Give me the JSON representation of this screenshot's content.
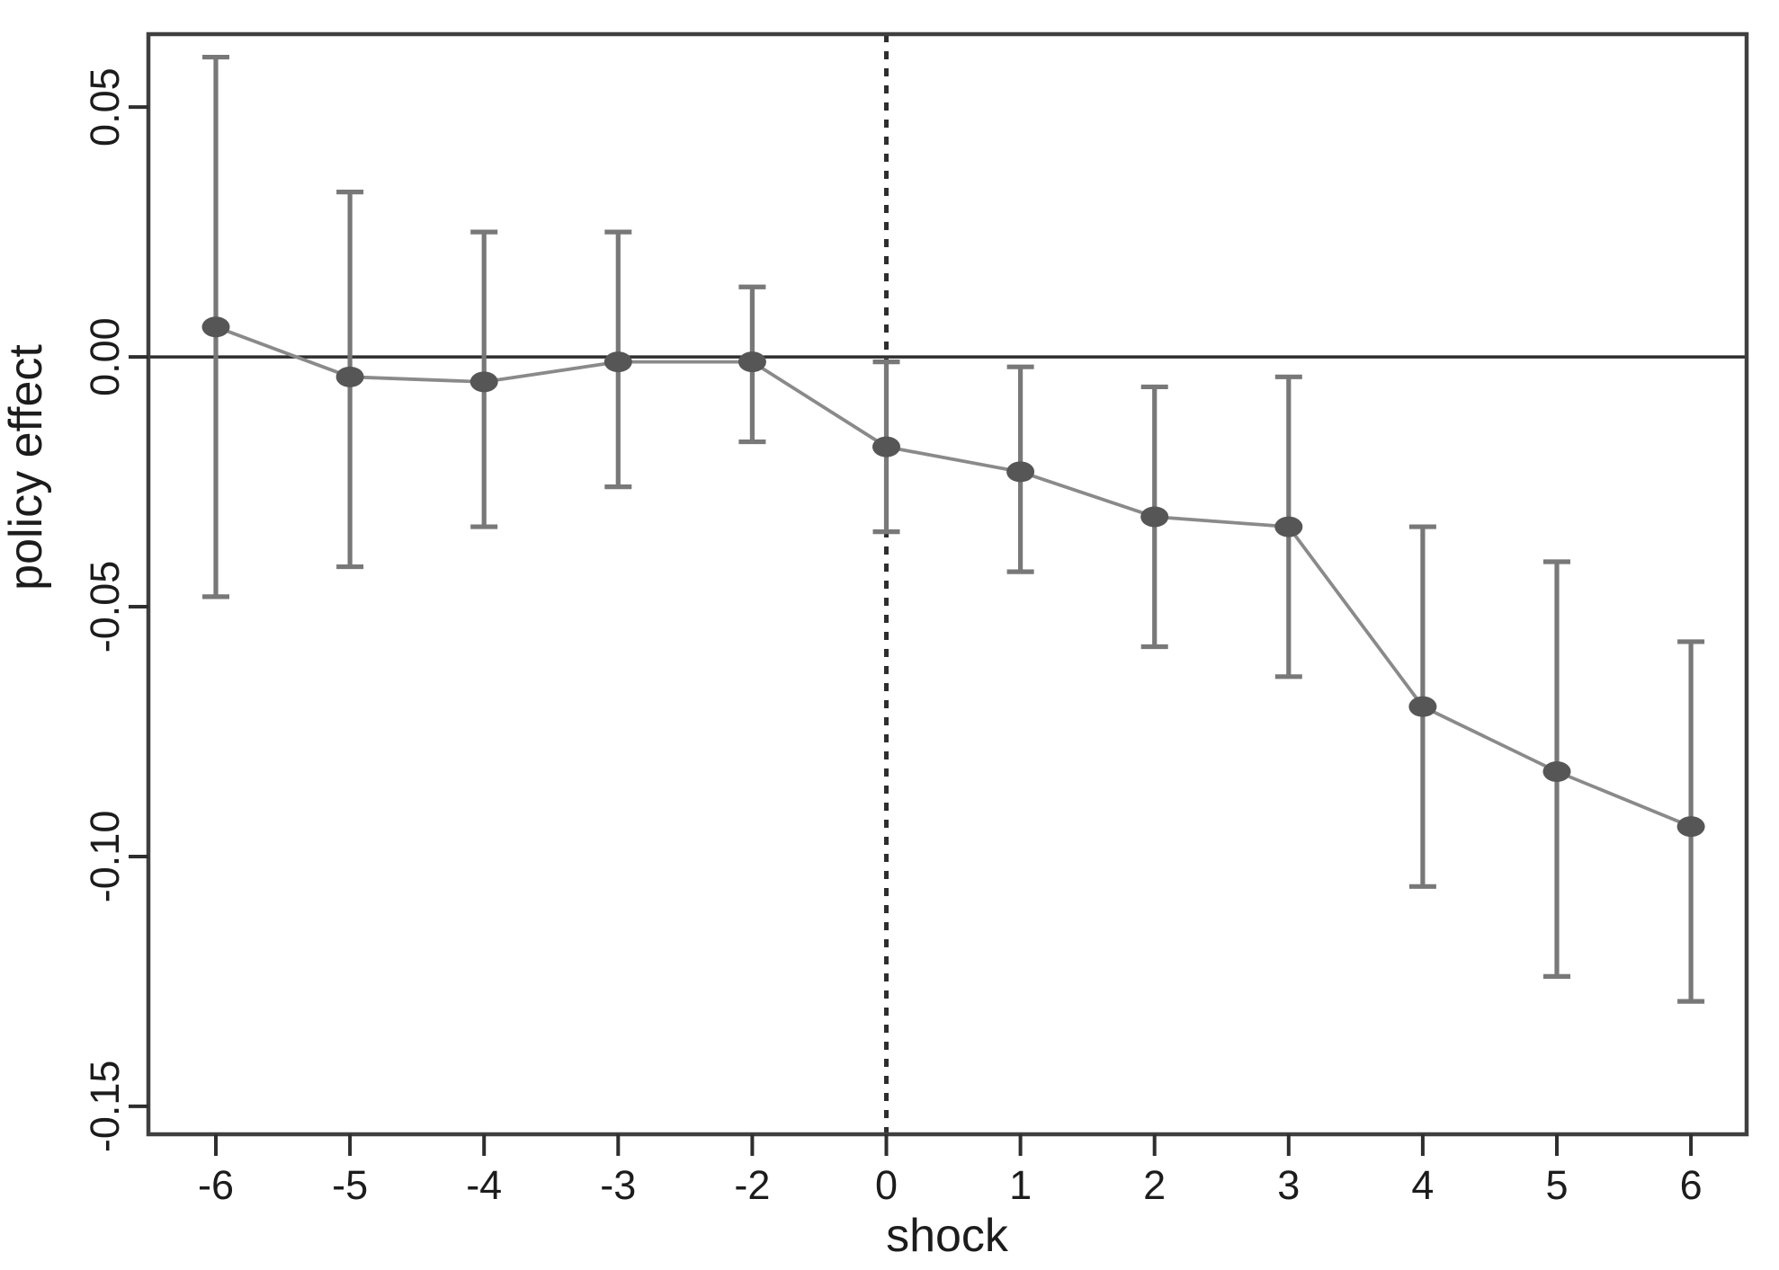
{
  "chart_data": {
    "type": "line",
    "title": "",
    "xlabel": "shock",
    "ylabel": "policy effect",
    "grid": false,
    "legend_position": "none",
    "x_axis": {
      "categories": [
        "-6",
        "-5",
        "-4",
        "-3",
        "-2",
        "0",
        "1",
        "2",
        "3",
        "4",
        "5",
        "6"
      ],
      "note_omitted_category": "-1",
      "vertical_reference_at_category": "0",
      "vertical_reference_style": "dashed"
    },
    "y_axis": {
      "tick_values": [
        0.05,
        0.0,
        -0.05,
        -0.1,
        -0.15
      ],
      "tick_labels": [
        "0.05",
        "0.00",
        "-0.05",
        "-0.10",
        "-0.15"
      ],
      "ylim": [
        -0.1556,
        0.0646
      ],
      "horizontal_reference_at": 0
    },
    "series": [
      {
        "name": "policy-effect-estimates",
        "marker": "filled-circle",
        "values": [
          0.006,
          -0.004,
          -0.005,
          -0.001,
          -0.001,
          -0.018,
          -0.023,
          -0.032,
          -0.034,
          -0.07,
          -0.083,
          -0.094
        ],
        "ci_low": [
          -0.048,
          -0.042,
          -0.034,
          -0.026,
          -0.017,
          -0.035,
          -0.043,
          -0.058,
          -0.064,
          -0.106,
          -0.124,
          -0.129
        ],
        "ci_high": [
          0.06,
          0.033,
          0.025,
          0.025,
          0.014,
          -0.001,
          -0.002,
          -0.006,
          -0.004,
          -0.034,
          -0.041,
          -0.057
        ]
      }
    ],
    "colors": {
      "background": "#ffffff",
      "plot_border": "#3f3f3f",
      "zero_line": "#2e2e2e",
      "dashed_line": "#2e2e2e",
      "tick": "#2e2e2e",
      "error_bar": "#787878",
      "series_line": "#8a8a8a",
      "marker": "#565656",
      "text": "#1c1c1c"
    }
  }
}
